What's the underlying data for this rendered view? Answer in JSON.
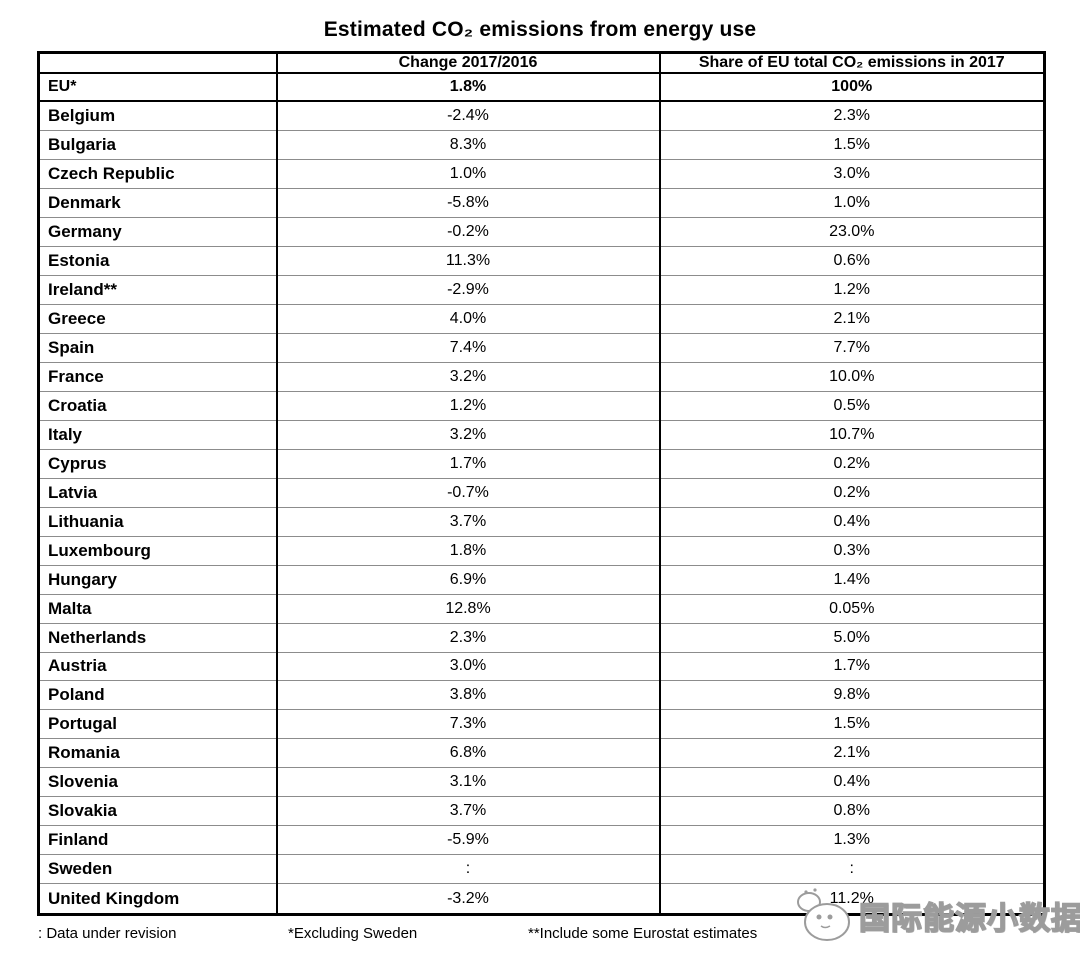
{
  "title": "Estimated CO₂ emissions from energy use",
  "chart_data": {
    "type": "table",
    "title": "Estimated CO₂ emissions from energy use",
    "columns": [
      "",
      "Change 2017/2016",
      "Share of EU total CO₂ emissions in 2017"
    ],
    "rows": [
      [
        "EU*",
        "1.8%",
        "100%"
      ],
      [
        "Belgium",
        "-2.4%",
        "2.3%"
      ],
      [
        "Bulgaria",
        "8.3%",
        "1.5%"
      ],
      [
        "Czech Republic",
        "1.0%",
        "3.0%"
      ],
      [
        "Denmark",
        "-5.8%",
        "1.0%"
      ],
      [
        "Germany",
        "-0.2%",
        "23.0%"
      ],
      [
        "Estonia",
        "11.3%",
        "0.6%"
      ],
      [
        "Ireland**",
        "-2.9%",
        "1.2%"
      ],
      [
        "Greece",
        "4.0%",
        "2.1%"
      ],
      [
        "Spain",
        "7.4%",
        "7.7%"
      ],
      [
        "France",
        "3.2%",
        "10.0%"
      ],
      [
        "Croatia",
        "1.2%",
        "0.5%"
      ],
      [
        "Italy",
        "3.2%",
        "10.7%"
      ],
      [
        "Cyprus",
        "1.7%",
        "0.2%"
      ],
      [
        "Latvia",
        "-0.7%",
        "0.2%"
      ],
      [
        "Lithuania",
        "3.7%",
        "0.4%"
      ],
      [
        "Luxembourg",
        "1.8%",
        "0.3%"
      ],
      [
        "Hungary",
        "6.9%",
        "1.4%"
      ],
      [
        "Malta",
        "12.8%",
        "0.05%"
      ],
      [
        "Netherlands",
        "2.3%",
        "5.0%"
      ],
      [
        "Austria",
        "3.0%",
        "1.7%"
      ],
      [
        "Poland",
        "3.8%",
        "9.8%"
      ],
      [
        "Portugal",
        "7.3%",
        "1.5%"
      ],
      [
        "Romania",
        "6.8%",
        "2.1%"
      ],
      [
        "Slovenia",
        "3.1%",
        "0.4%"
      ],
      [
        "Slovakia",
        "3.7%",
        "0.8%"
      ],
      [
        "Finland",
        "-5.9%",
        "1.3%"
      ],
      [
        "Sweden",
        ":",
        ":"
      ],
      [
        "United Kingdom",
        "-3.2%",
        "11.2%"
      ]
    ]
  },
  "footnotes": {
    "revision": ": Data under revision",
    "excluding": "*Excluding Sweden",
    "eurostat": "**Include some Eurostat estimates"
  },
  "watermark": {
    "text": "国际能源小数据"
  },
  "colors": {
    "text": "#000000",
    "border": "#000000",
    "row_line": "#8c8c8c",
    "background": "#ffffff",
    "watermark_outline": "#9c9c9c"
  }
}
